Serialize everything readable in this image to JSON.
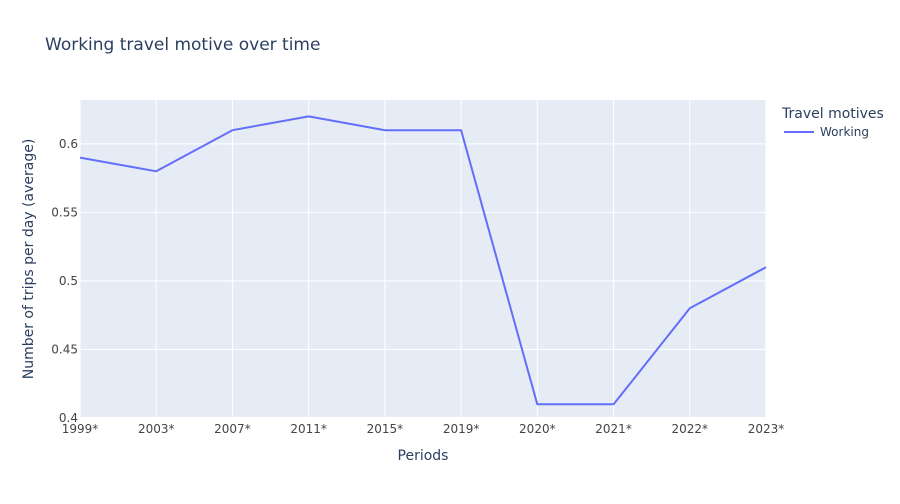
{
  "chart_data": {
    "type": "line",
    "title": "Working travel motive over time",
    "xlabel": "Periods",
    "ylabel": "Number of trips per day (average)",
    "categories": [
      "1999*",
      "2003*",
      "2007*",
      "2011*",
      "2015*",
      "2019*",
      "2020*",
      "2021*",
      "2022*",
      "2023*"
    ],
    "ylim": [
      0.4,
      0.632
    ],
    "yticks": [
      0.4,
      0.45,
      0.5,
      0.55,
      0.6
    ],
    "ytick_labels": [
      "0.4",
      "0.45",
      "0.5",
      "0.55",
      "0.6"
    ],
    "grid": true,
    "legend": {
      "title": "Travel motives",
      "placement": "right"
    },
    "series": [
      {
        "name": "Working",
        "color": "#636efa",
        "values": [
          0.59,
          0.58,
          0.61,
          0.62,
          0.61,
          0.61,
          0.41,
          0.41,
          0.48,
          0.51
        ]
      }
    ]
  },
  "colors": {
    "plot_background": "#e5ecf6",
    "gridline": "#ffffff",
    "text": "#2a3f5f",
    "tick_text": "#444444"
  }
}
